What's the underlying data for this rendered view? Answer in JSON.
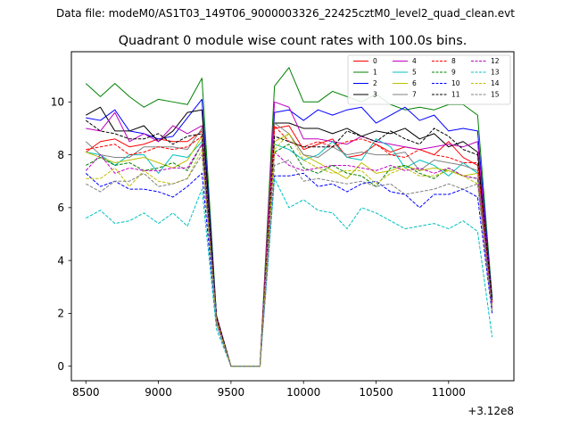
{
  "suptitle": "Data file: modeM0/AS1T03_149T06_9000003326_22425cztM0_level2_quad_clean.evt",
  "chart_data": {
    "type": "line",
    "title": "Quadrant 0 module wise count rates with 100.0s bins.",
    "xlabel": "",
    "ylabel": "",
    "x_offset_label": "+3.12e8",
    "xlim": [
      8400,
      11450
    ],
    "ylim": [
      -0.55,
      11.9
    ],
    "xticks": [
      8500,
      9000,
      9500,
      10000,
      10500,
      11000
    ],
    "xtick_labels": [
      "8500",
      "9000",
      "9500",
      "10000",
      "10500",
      "11000"
    ],
    "yticks": [
      0,
      2,
      4,
      6,
      8,
      10
    ],
    "ytick_labels": [
      "0",
      "2",
      "4",
      "6",
      "8",
      "10"
    ],
    "x": [
      8500,
      8600,
      8700,
      8800,
      8900,
      9000,
      9100,
      9200,
      9300,
      9400,
      9500,
      9600,
      9700,
      9800,
      9900,
      10000,
      10100,
      10200,
      10300,
      10400,
      10500,
      10600,
      10700,
      10800,
      10900,
      11000,
      11100,
      11200,
      11300
    ],
    "legend_position": "upper-right",
    "series": [
      {
        "name": "0",
        "color": "#ff0000",
        "style": "solid",
        "values": [
          8.1,
          8.5,
          8.6,
          8.3,
          8.4,
          8.6,
          8.5,
          8.5,
          8.9,
          1.8,
          0.0,
          0.0,
          0.0,
          9.0,
          9.1,
          8.2,
          8.4,
          8.6,
          7.9,
          8.0,
          8.4,
          8.1,
          8.3,
          8.2,
          8.0,
          8.5,
          7.9,
          7.6,
          2.5
        ]
      },
      {
        "name": "1",
        "color": "#008000",
        "style": "solid",
        "values": [
          10.7,
          10.2,
          10.7,
          10.2,
          9.8,
          10.1,
          10.0,
          9.9,
          10.9,
          1.9,
          0.0,
          0.0,
          0.0,
          10.6,
          11.3,
          10.0,
          10.0,
          10.4,
          10.2,
          10.0,
          10.3,
          9.9,
          9.7,
          9.8,
          9.7,
          9.9,
          9.9,
          9.5,
          2.6
        ]
      },
      {
        "name": "2",
        "color": "#0000ff",
        "style": "solid",
        "values": [
          9.4,
          9.3,
          9.7,
          8.9,
          8.8,
          8.6,
          8.7,
          9.4,
          10.1,
          1.9,
          0.0,
          0.0,
          0.0,
          9.6,
          9.7,
          9.3,
          9.7,
          9.5,
          9.7,
          9.8,
          9.2,
          9.5,
          9.8,
          9.3,
          9.5,
          8.9,
          9.0,
          8.9,
          2.5
        ]
      },
      {
        "name": "3",
        "color": "#000000",
        "style": "solid",
        "values": [
          9.5,
          9.8,
          8.9,
          8.9,
          9.1,
          8.5,
          8.9,
          9.6,
          9.7,
          1.9,
          0.0,
          0.0,
          0.0,
          9.2,
          9.2,
          9.0,
          9.0,
          8.8,
          9.0,
          8.7,
          8.9,
          8.8,
          9.0,
          8.6,
          8.8,
          8.3,
          8.5,
          8.1,
          2.5
        ]
      },
      {
        "name": "4",
        "color": "#bf00bf",
        "style": "solid",
        "values": [
          9.0,
          8.9,
          9.6,
          8.5,
          8.8,
          8.5,
          9.1,
          8.8,
          9.1,
          1.9,
          0.0,
          0.0,
          0.0,
          10.0,
          9.8,
          8.6,
          8.6,
          8.5,
          8.4,
          8.7,
          8.5,
          8.4,
          8.3,
          8.2,
          8.3,
          8.4,
          8.3,
          8.5,
          2.4
        ]
      },
      {
        "name": "5",
        "color": "#00bfbf",
        "style": "solid",
        "values": [
          8.1,
          8.0,
          7.6,
          8.0,
          8.0,
          7.3,
          8.0,
          7.9,
          8.5,
          1.8,
          0.0,
          0.0,
          0.0,
          8.4,
          8.2,
          7.8,
          8.0,
          8.5,
          7.9,
          7.8,
          8.6,
          8.3,
          7.5,
          7.8,
          7.6,
          7.2,
          7.7,
          7.3,
          2.3
        ]
      },
      {
        "name": "6",
        "color": "#bfbf00",
        "style": "solid",
        "values": [
          8.1,
          7.9,
          7.7,
          7.8,
          7.9,
          7.7,
          7.5,
          7.8,
          8.7,
          1.8,
          0.0,
          0.0,
          0.0,
          8.5,
          8.8,
          8.0,
          7.7,
          7.4,
          7.1,
          7.7,
          7.3,
          7.4,
          7.6,
          7.4,
          7.5,
          7.4,
          7.2,
          7.3,
          2.3
        ]
      },
      {
        "name": "7",
        "color": "#808080",
        "style": "solid",
        "values": [
          8.5,
          8.0,
          7.9,
          7.9,
          8.3,
          8.3,
          8.3,
          8.2,
          9.0,
          1.8,
          0.0,
          0.0,
          0.0,
          9.2,
          8.8,
          8.0,
          7.9,
          8.3,
          8.0,
          8.1,
          8.0,
          8.0,
          8.1,
          7.4,
          7.8,
          7.7,
          7.6,
          7.4,
          2.4
        ]
      },
      {
        "name": "8",
        "color": "#ff0000",
        "style": "dashed",
        "values": [
          8.2,
          8.3,
          8.4,
          8.0,
          8.1,
          8.3,
          8.2,
          8.3,
          8.7,
          1.8,
          0.0,
          0.0,
          0.0,
          9.1,
          8.5,
          8.3,
          8.5,
          8.3,
          8.5,
          8.6,
          8.4,
          8.0,
          7.9,
          8.2,
          8.0,
          7.9,
          7.7,
          7.7,
          2.4
        ]
      },
      {
        "name": "9",
        "color": "#008000",
        "style": "dashed",
        "values": [
          7.6,
          7.9,
          7.6,
          7.7,
          7.4,
          7.5,
          7.7,
          7.4,
          8.4,
          1.7,
          0.0,
          0.0,
          0.0,
          8.1,
          8.4,
          7.5,
          7.3,
          7.6,
          7.3,
          7.2,
          6.8,
          7.5,
          7.6,
          7.3,
          7.1,
          7.5,
          7.2,
          7.1,
          2.2
        ]
      },
      {
        "name": "10",
        "color": "#0000ff",
        "style": "dashed",
        "values": [
          7.3,
          6.8,
          7.0,
          6.7,
          6.7,
          6.6,
          6.4,
          6.8,
          7.3,
          1.6,
          0.0,
          0.0,
          0.0,
          7.2,
          7.2,
          7.3,
          6.8,
          6.9,
          6.6,
          6.9,
          7.0,
          6.6,
          6.5,
          6.0,
          6.5,
          6.5,
          6.7,
          6.4,
          2.0
        ]
      },
      {
        "name": "11",
        "color": "#000000",
        "style": "dashed",
        "values": [
          9.3,
          8.9,
          8.8,
          8.6,
          8.6,
          8.8,
          8.4,
          8.7,
          8.8,
          1.9,
          0.0,
          0.0,
          0.0,
          8.7,
          8.5,
          8.3,
          8.3,
          8.3,
          8.9,
          8.7,
          8.5,
          8.9,
          8.6,
          8.4,
          9.0,
          8.7,
          8.2,
          8.0,
          2.5
        ]
      },
      {
        "name": "12",
        "color": "#bf00bf",
        "style": "dashed",
        "values": [
          7.4,
          8.0,
          7.3,
          7.5,
          7.4,
          7.4,
          7.5,
          7.5,
          8.4,
          1.7,
          0.0,
          0.0,
          0.0,
          8.1,
          7.6,
          7.4,
          7.5,
          7.6,
          7.6,
          7.5,
          7.4,
          7.6,
          7.4,
          7.5,
          7.3,
          7.5,
          7.2,
          7.1,
          2.2
        ]
      },
      {
        "name": "13",
        "color": "#00bfbf",
        "style": "dashed",
        "values": [
          5.6,
          5.9,
          5.4,
          5.5,
          5.8,
          5.4,
          5.8,
          5.3,
          6.7,
          1.4,
          0.0,
          0.0,
          0.0,
          7.1,
          6.0,
          6.3,
          5.9,
          5.8,
          5.2,
          6.0,
          5.8,
          5.5,
          5.2,
          5.3,
          5.4,
          5.2,
          5.5,
          5.1,
          1.1
        ]
      },
      {
        "name": "14",
        "color": "#bfbf00",
        "style": "dashed",
        "values": [
          7.1,
          7.1,
          7.5,
          6.8,
          7.4,
          7.0,
          6.9,
          7.1,
          8.2,
          1.7,
          0.0,
          0.0,
          0.0,
          8.2,
          8.8,
          7.8,
          7.5,
          7.3,
          7.4,
          7.4,
          6.9,
          7.3,
          7.5,
          7.2,
          7.2,
          7.4,
          7.2,
          6.9,
          2.1
        ]
      },
      {
        "name": "15",
        "color": "#808080",
        "style": "dashed",
        "values": [
          6.9,
          6.6,
          7.0,
          7.0,
          7.3,
          6.8,
          6.9,
          7.1,
          8.0,
          1.6,
          0.0,
          0.0,
          0.0,
          7.6,
          7.8,
          7.0,
          7.1,
          7.0,
          6.9,
          7.0,
          6.8,
          6.9,
          6.5,
          6.6,
          6.7,
          6.9,
          6.7,
          6.9,
          2.1
        ]
      }
    ]
  }
}
